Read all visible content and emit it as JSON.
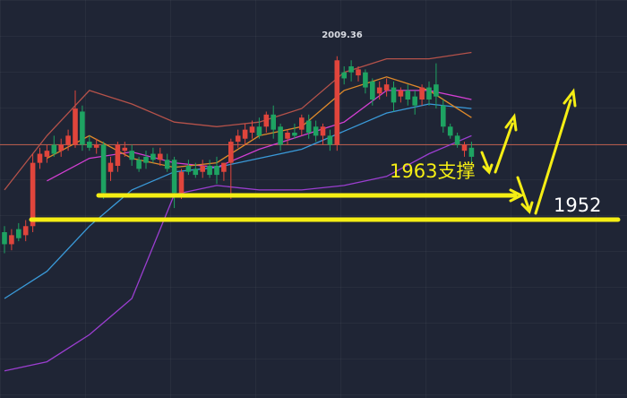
{
  "chart_data": {
    "type": "candlestick",
    "ylim": [
      1896,
      2028
    ],
    "up_color": "#e0453c",
    "down_color": "#1ea362",
    "open": [
      1951,
      1947,
      1952,
      1950,
      1953,
      1974,
      1976,
      1980,
      1978,
      1980,
      1980,
      1991,
      1981,
      1979,
      1980,
      1971,
      1973,
      1978,
      1978,
      1975,
      1976,
      1977,
      1975,
      1975,
      1975,
      1964,
      1973,
      1972,
      1971,
      1973,
      1973,
      1971,
      1974,
      1981,
      1982,
      1984,
      1986,
      1986,
      1990,
      1986,
      1982,
      1984,
      1985,
      1988,
      1986,
      1983,
      1983,
      1980,
      2004,
      2006,
      2003,
      2004,
      2001,
      1997,
      1998,
      1999,
      1996,
      1998,
      1996,
      1995,
      1999,
      2000,
      1993,
      1986,
      1983,
      1978,
      1979
    ],
    "high": [
      1953,
      1952,
      1954,
      1955,
      1977,
      1979,
      1980,
      1983,
      1982,
      1985,
      1998,
      1993,
      1983,
      1982,
      1981,
      1976,
      1981,
      1981,
      1980,
      1976,
      1978,
      1979,
      1979,
      1977,
      1976,
      1972,
      1975,
      1974,
      1975,
      1975,
      1976,
      1974,
      1982,
      1985,
      1987,
      1988,
      1989,
      1991,
      1993,
      1987,
      1985,
      1987,
      1990,
      1990,
      1988,
      1987,
      1985,
      2009.36,
      2006,
      2008,
      2006,
      2005,
      2002,
      2001,
      2002,
      2001,
      1999,
      2000,
      1998,
      2000,
      2001,
      2007,
      1995,
      1987,
      1984,
      1981,
      1981
    ],
    "low": [
      1944,
      1945,
      1948,
      1948,
      1951,
      1972,
      1974,
      1976,
      1976,
      1978,
      1979,
      1978,
      1978,
      1977,
      1962,
      1968,
      1971,
      1976,
      1973,
      1971,
      1972,
      1974,
      1973,
      1971,
      1959,
      1962,
      1970,
      1969,
      1969,
      1969,
      1967,
      1968,
      1962,
      1979,
      1980,
      1982,
      1982,
      1984,
      1982,
      1978,
      1980,
      1982,
      1983,
      1982,
      1981,
      1980,
      1978,
      1978,
      2000,
      2001,
      2001,
      1997,
      1993,
      1995,
      1996,
      1991,
      1994,
      1993,
      1990,
      1993,
      1993,
      1992,
      1984,
      1982,
      1979,
      1976,
      1974
    ],
    "close": [
      1947,
      1950,
      1949,
      1953,
      1974,
      1977,
      1978,
      1977,
      1980,
      1983,
      1992,
      1980,
      1979,
      1980,
      1964,
      1974,
      1980,
      1979,
      1975,
      1972,
      1974,
      1975,
      1977,
      1972,
      1964,
      1971,
      1971,
      1970,
      1973,
      1970,
      1970,
      1974,
      1981,
      1983,
      1985,
      1986,
      1983,
      1990,
      1985,
      1980,
      1984,
      1983,
      1989,
      1984,
      1983,
      1986,
      1980,
      2008,
      2002,
      2004,
      2005,
      1999,
      1995,
      1999,
      2000,
      1994,
      1998,
      1995,
      1993,
      1999,
      1995,
      1996,
      1986,
      1983,
      1980,
      1980,
      1976
    ],
    "overlays": [
      {
        "color": "#b5524a",
        "x": [
          0,
          6,
          12,
          18,
          24,
          30,
          36,
          42,
          48,
          54,
          60,
          66
        ],
        "values": [
          1965,
          1983,
          1998,
          1993.5,
          1987.5,
          1986,
          1987.5,
          1992,
          2004,
          2008.5,
          2008.5,
          2010.6
        ]
      },
      {
        "color": "#9b3ed0",
        "x": [
          0,
          6,
          12,
          18,
          24,
          30,
          36,
          42,
          48,
          54,
          60,
          66
        ],
        "values": [
          1905,
          1908,
          1917,
          1929,
          1963.5,
          1966.5,
          1965,
          1965,
          1966.5,
          1969.5,
          1977,
          1983
        ]
      },
      {
        "color": "#3a9ad9",
        "x": [
          0,
          6,
          12,
          18,
          24,
          30,
          36,
          42,
          48,
          54,
          60,
          66
        ],
        "values": [
          1929,
          1938,
          1953,
          1965,
          1971,
          1972.5,
          1975.5,
          1978.5,
          1984.5,
          1990.5,
          1993.5,
          1992
        ]
      },
      {
        "color": "#d33fd3",
        "x": [
          6,
          12,
          18,
          24,
          30,
          36,
          42,
          48,
          54,
          60,
          66
        ],
        "values": [
          1968,
          1975.5,
          1977.6,
          1974,
          1972.5,
          1978.5,
          1983,
          1987.5,
          1998,
          1998,
          1995
        ]
      },
      {
        "color": "#e08a2a",
        "x": [
          6,
          12,
          18,
          24,
          30,
          36,
          42,
          48,
          54,
          60,
          66
        ],
        "values": [
          1975.5,
          1983,
          1975.5,
          1972.5,
          1974,
          1983,
          1986,
          1998,
          2002.5,
          1998,
          1989
        ]
      }
    ],
    "price_line": {
      "value": 1980,
      "color": "#b4594a"
    },
    "annotations": [
      "2009.36",
      "1963支撑",
      "1952"
    ]
  }
}
